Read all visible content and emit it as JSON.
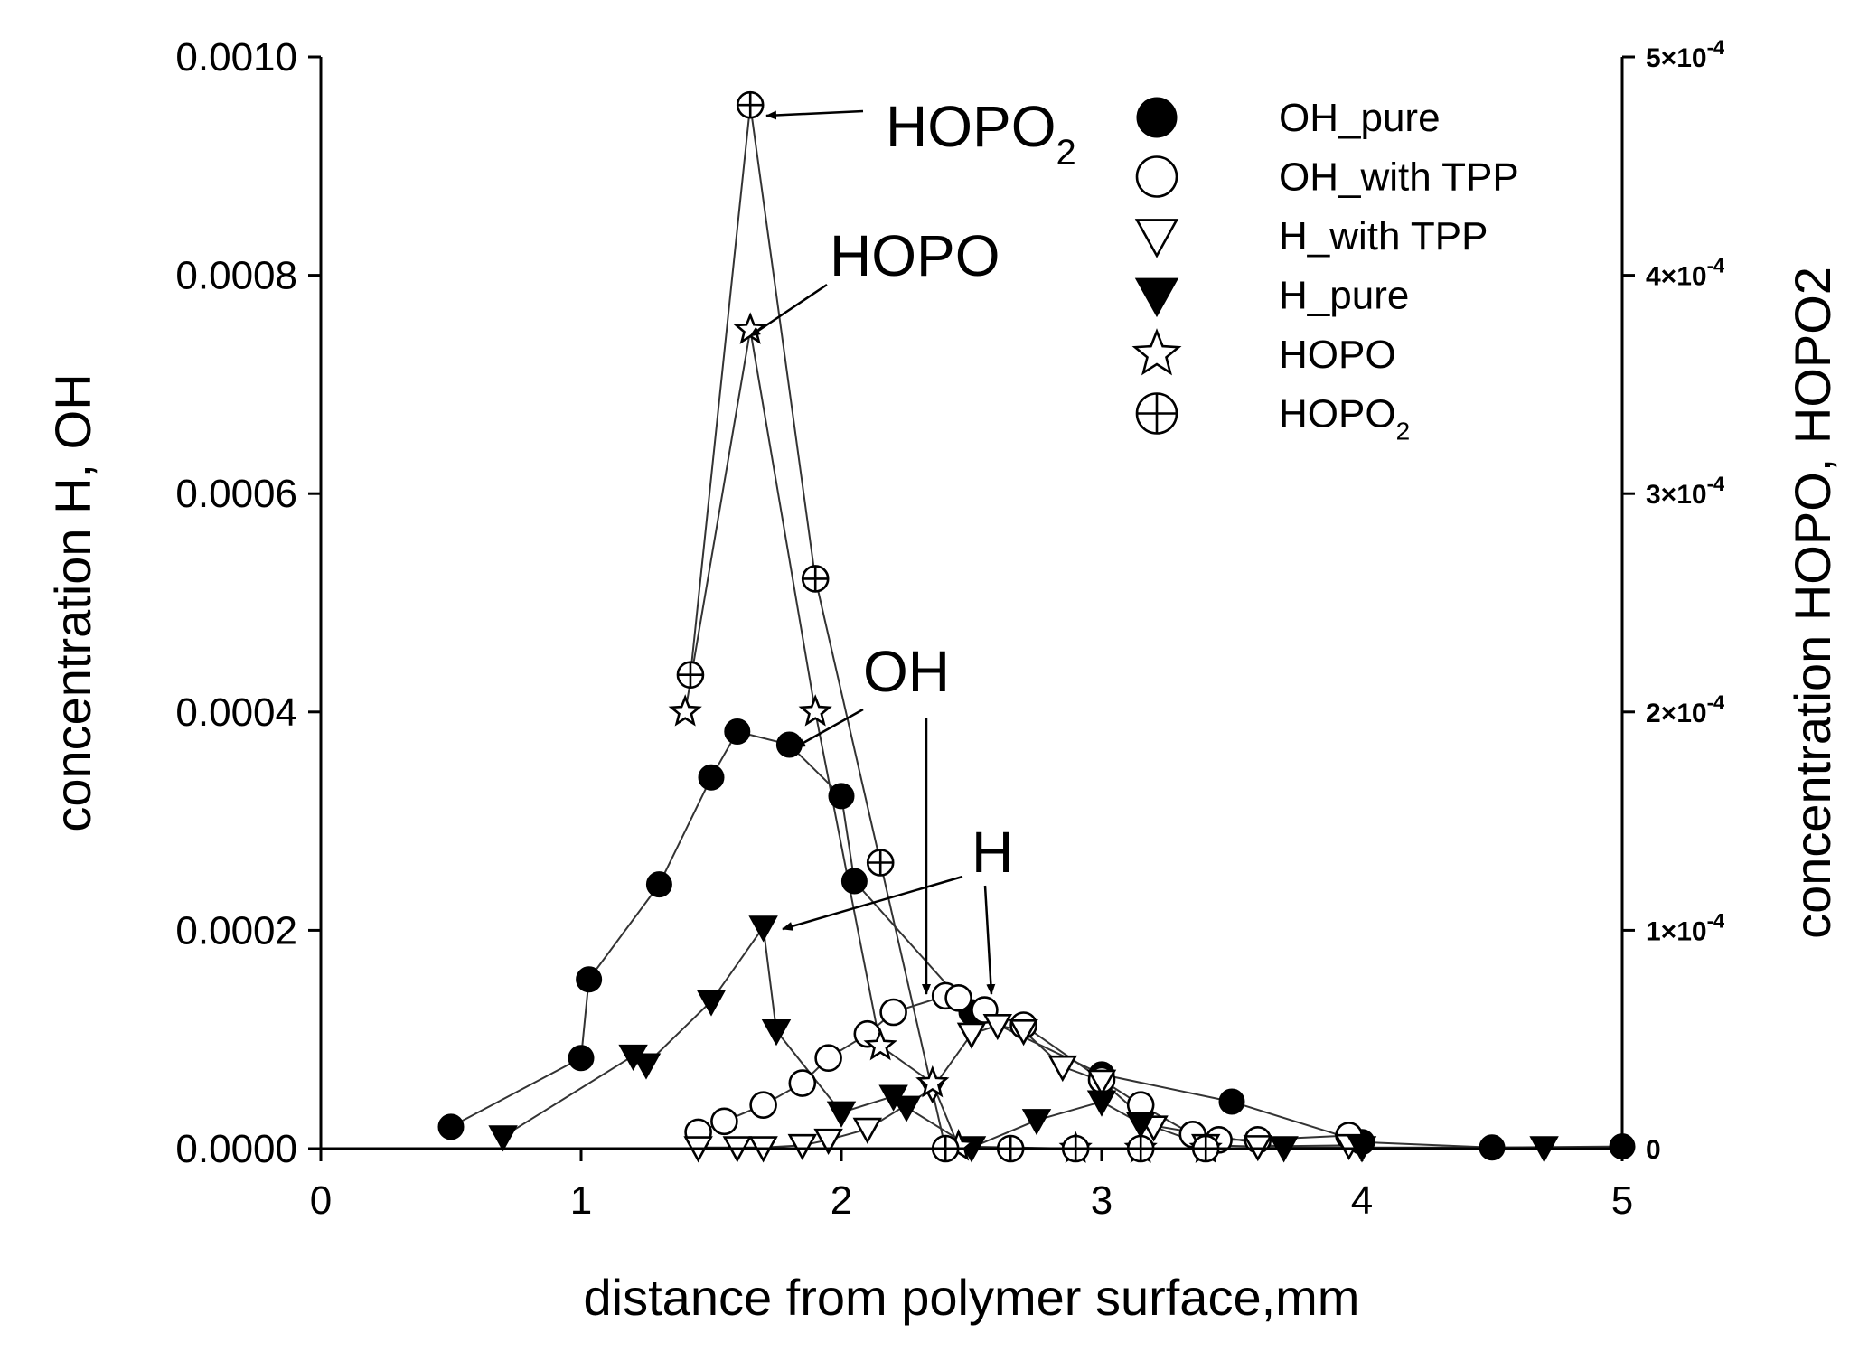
{
  "chart_data": {
    "type": "scatter",
    "xlabel": "distance from polymer surface,mm",
    "ylabel_left": "concentration H, OH",
    "ylabel_right": "concentration HOPO, HOPO2",
    "xlim": [
      0,
      5
    ],
    "ylim_left": [
      0,
      0.001
    ],
    "ylim_right": [
      0,
      0.0005
    ],
    "grid": false,
    "legend_position": "top-right",
    "x_ticks": [
      "0",
      "1",
      "2",
      "3",
      "4",
      "5"
    ],
    "y_ticks_left": [
      "0.0000",
      "0.0002",
      "0.0004",
      "0.0006",
      "0.0008",
      "0.0010"
    ],
    "y_ticks_right": [
      {
        "base": "0",
        "exp": ""
      },
      {
        "base": "1×10",
        "exp": "-4"
      },
      {
        "base": "2×10",
        "exp": "-4"
      },
      {
        "base": "3×10",
        "exp": "-4"
      },
      {
        "base": "4×10",
        "exp": "-4"
      },
      {
        "base": "5×10",
        "exp": "-4"
      }
    ],
    "series": [
      {
        "name": "OH_pure",
        "marker": "filled-circle",
        "axis": "left",
        "x": [
          0.5,
          1.0,
          1.03,
          1.3,
          1.5,
          1.6,
          1.8,
          2.0,
          2.05,
          2.5,
          3.0,
          3.5,
          4.0,
          4.5,
          5.0
        ],
        "y": [
          2e-05,
          8.3e-05,
          0.000155,
          0.000242,
          0.00034,
          0.000382,
          0.00037,
          0.000323,
          0.000245,
          0.000125,
          6.8e-05,
          4.3e-05,
          6e-06,
          1e-06,
          2e-06
        ]
      },
      {
        "name": "OH_with TPP",
        "marker": "open-circle",
        "axis": "left",
        "x": [
          1.45,
          1.55,
          1.7,
          1.85,
          1.95,
          2.1,
          2.2,
          2.4,
          2.45,
          2.55,
          2.7,
          3.0,
          3.15,
          3.35,
          3.45,
          3.6,
          3.95
        ],
        "y": [
          1.5e-05,
          2.5e-05,
          4e-05,
          6e-05,
          8.3e-05,
          0.000105,
          0.000125,
          0.00014,
          0.000138,
          0.000127,
          0.000113,
          6.3e-05,
          4e-05,
          1.3e-05,
          8e-06,
          8e-06,
          1.2e-05
        ]
      },
      {
        "name": "H_with TPP",
        "marker": "open-triangle-down",
        "axis": "left",
        "x": [
          1.45,
          1.6,
          1.7,
          1.85,
          1.95,
          2.1,
          2.35,
          2.5,
          2.6,
          2.7,
          2.85,
          3.0,
          3.2,
          3.4,
          3.6,
          3.95
        ],
        "y": [
          1e-06,
          1e-06,
          1e-06,
          3e-06,
          8e-06,
          1.8e-05,
          5.5e-05,
          0.000105,
          0.000113,
          0.000108,
          7.5e-05,
          6.2e-05,
          2e-05,
          3e-06,
          2e-06,
          3e-06
        ]
      },
      {
        "name": "H_pure",
        "marker": "filled-triangle-down",
        "axis": "left",
        "x": [
          0.7,
          1.2,
          1.25,
          1.5,
          1.7,
          1.75,
          2.0,
          2.2,
          2.25,
          2.5,
          2.75,
          3.0,
          3.15,
          3.7,
          4.0,
          4.7
        ],
        "y": [
          1.1e-05,
          8.5e-05,
          7.7e-05,
          0.000135,
          0.000203,
          0.000108,
          3.3e-05,
          4.8e-05,
          3.8e-05,
          1e-06,
          2.6e-05,
          4.3e-05,
          2.3e-05,
          1e-06,
          1e-06,
          1e-06
        ]
      },
      {
        "name": "HOPO",
        "marker": "open-star",
        "axis": "right",
        "x": [
          1.4,
          1.65,
          1.9,
          2.15,
          2.35,
          2.45,
          2.9,
          3.15,
          3.4
        ],
        "y": [
          0.0002,
          0.000375,
          0.0002,
          4.7e-05,
          3e-05,
          1e-06,
          0.0,
          0.0,
          0.0
        ]
      },
      {
        "name": "HOPO2",
        "legend_label": "HOPO",
        "legend_sub": "2",
        "marker": "crossed-circle",
        "axis": "right",
        "x": [
          1.42,
          1.65,
          1.9,
          2.15,
          2.4,
          2.65,
          2.9,
          3.15,
          3.4
        ],
        "y": [
          0.000217,
          0.000478,
          0.000261,
          0.000131,
          0.0,
          0.0,
          0.0,
          0.0,
          0.0
        ]
      }
    ],
    "annotations": [
      {
        "text": "HOPO",
        "sub": "2",
        "target": [
          1.65,
          0.000478
        ],
        "axis": "right"
      },
      {
        "text": "HOPO",
        "sub": "",
        "target": [
          1.65,
          0.000375
        ],
        "axis": "right"
      },
      {
        "text": "OH",
        "sub": "",
        "target": [
          1.85,
          0.00037
        ],
        "axis": "left"
      },
      {
        "text": "H",
        "sub": "",
        "target": [
          1.75,
          0.000203
        ],
        "axis": "left"
      }
    ]
  }
}
